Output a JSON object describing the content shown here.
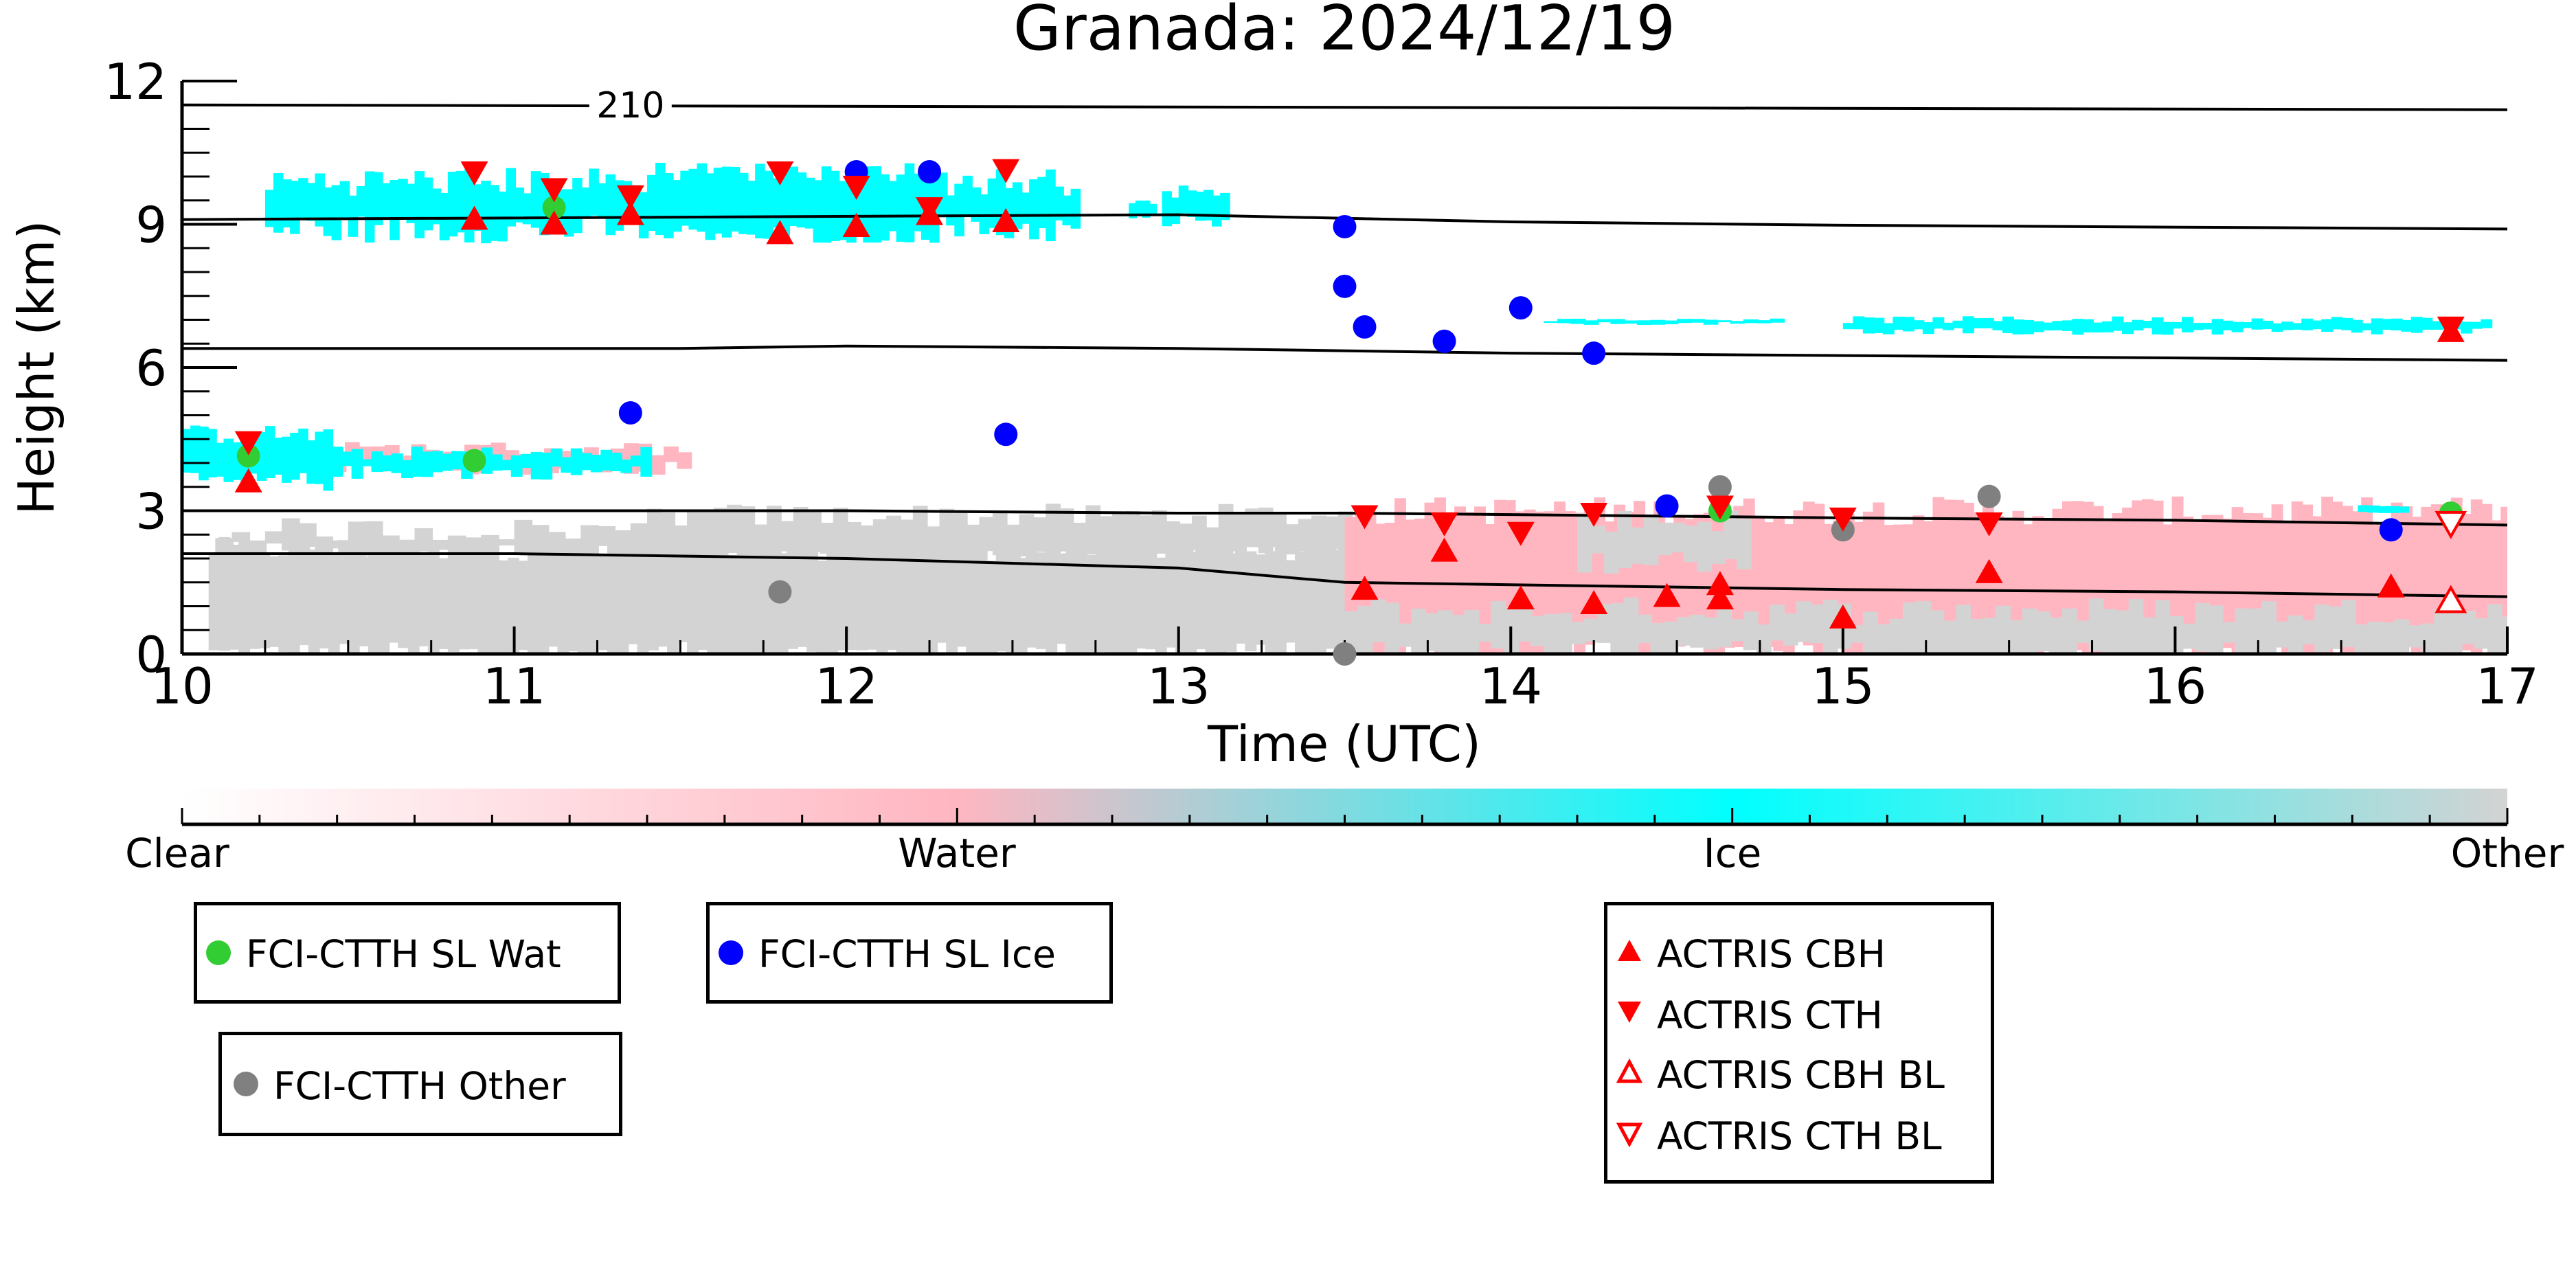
{
  "chart_data": {
    "type": "scatter",
    "title": "Granada: 2024/12/19",
    "xlabel": "Time (UTC)",
    "ylabel": "Height (km)",
    "xlim": [
      10,
      17
    ],
    "ylim": [
      0,
      12
    ],
    "x_ticks": [
      "10",
      "11",
      "12",
      "13",
      "14",
      "15",
      "16",
      "17"
    ],
    "y_ticks": [
      "0",
      "3",
      "6",
      "9",
      "12"
    ],
    "background": "cloud-type curtain (Clear / Water / Ice / Other), time–height",
    "colorbar": {
      "labels": [
        "Clear",
        "Water",
        "Ice",
        "Other"
      ],
      "colors": [
        "#ffffff",
        "#ffb6c1",
        "#00ffff",
        "#d3d3d3"
      ]
    },
    "temperature_lines": {
      "label": "210",
      "label_x": 11.35,
      "lines": [
        {
          "points": [
            [
              10,
              11.5
            ],
            [
              17,
              11.4
            ]
          ]
        },
        {
          "points": [
            [
              10,
              9.1
            ],
            [
              13,
              9.2
            ],
            [
              14,
              9.05
            ],
            [
              15,
              8.98
            ],
            [
              17,
              8.9
            ]
          ]
        },
        {
          "points": [
            [
              10,
              6.4
            ],
            [
              11.5,
              6.4
            ],
            [
              12,
              6.45
            ],
            [
              13,
              6.4
            ],
            [
              14,
              6.3
            ],
            [
              15,
              6.25
            ],
            [
              17,
              6.15
            ]
          ]
        },
        {
          "points": [
            [
              10,
              3.0
            ],
            [
              11,
              3.0
            ],
            [
              12,
              3.0
            ],
            [
              13,
              2.95
            ],
            [
              13.5,
              2.95
            ],
            [
              14,
              2.92
            ],
            [
              15,
              2.85
            ],
            [
              16,
              2.8
            ],
            [
              17,
              2.7
            ]
          ]
        },
        {
          "points": [
            [
              10,
              2.1
            ],
            [
              11,
              2.1
            ],
            [
              12,
              2.0
            ],
            [
              12.5,
              1.9
            ],
            [
              13,
              1.8
            ],
            [
              13.5,
              1.5
            ],
            [
              14,
              1.45
            ],
            [
              15,
              1.35
            ],
            [
              16,
              1.3
            ],
            [
              17,
              1.2
            ]
          ]
        }
      ]
    },
    "series": [
      {
        "name": "FCI-CTTH SL Wat",
        "color": "#32cd32",
        "marker": "circle",
        "x": [
          10.2,
          10.88,
          11.12,
          14.63,
          16.83
        ],
        "y": [
          4.15,
          4.05,
          9.35,
          3.0,
          2.95
        ]
      },
      {
        "name": "FCI-CTTH SL Ice",
        "color": "#0000ff",
        "marker": "circle",
        "x": [
          11.35,
          12.03,
          12.25,
          12.48,
          13.5,
          13.5,
          13.56,
          13.8,
          14.03,
          14.25,
          14.47,
          16.65
        ],
        "y": [
          5.05,
          10.1,
          10.1,
          4.6,
          8.95,
          7.7,
          6.85,
          6.55,
          7.25,
          6.3,
          3.1,
          2.6
        ]
      },
      {
        "name": "FCI-CTTH Other",
        "color": "#808080",
        "marker": "circle",
        "x": [
          11.8,
          13.5,
          14.63,
          15.0,
          15.44
        ],
        "y": [
          1.3,
          0.0,
          3.5,
          2.6,
          3.3
        ]
      },
      {
        "name": "ACTRIS CBH",
        "color": "#ff0000",
        "marker": "triangle-up",
        "x": [
          10.2,
          10.88,
          11.12,
          11.35,
          11.8,
          12.03,
          12.25,
          12.48,
          16.83,
          13.56,
          13.8,
          14.03,
          14.25,
          14.47,
          14.63,
          14.63,
          15.0,
          15.44,
          16.65
        ],
        "y": [
          3.6,
          9.1,
          9.0,
          9.2,
          8.8,
          8.95,
          9.2,
          9.05,
          6.75,
          1.35,
          2.15,
          1.15,
          1.05,
          1.2,
          1.15,
          1.45,
          0.75,
          1.7,
          1.4
        ]
      },
      {
        "name": "ACTRIS CTH",
        "color": "#ff0000",
        "marker": "triangle-down",
        "x": [
          10.2,
          10.88,
          11.12,
          11.35,
          11.8,
          12.03,
          12.25,
          12.48,
          16.83,
          13.56,
          13.8,
          14.03,
          14.25,
          14.63,
          15.0,
          15.44
        ],
        "y": [
          4.45,
          10.1,
          9.75,
          9.6,
          10.1,
          9.8,
          9.35,
          10.15,
          6.85,
          2.9,
          2.75,
          2.55,
          2.95,
          3.1,
          2.85,
          2.75
        ]
      },
      {
        "name": "ACTRIS CBH BL",
        "color": "#ff0000",
        "marker": "triangle-up-open",
        "x": [
          16.83
        ],
        "y": [
          1.1
        ]
      },
      {
        "name": "ACTRIS CTH BL",
        "color": "#ff0000",
        "marker": "triangle-down-open",
        "x": [
          16.83
        ],
        "y": [
          2.75
        ]
      }
    ]
  },
  "legend": {
    "wat": "FCI-CTTH SL Wat",
    "ice": "FCI-CTTH SL Ice",
    "other": "FCI-CTTH Other",
    "cbh": "ACTRIS CBH",
    "cth": "ACTRIS CTH",
    "cbh_bl": "ACTRIS CBH BL",
    "cth_bl": "ACTRIS CTH BL"
  }
}
